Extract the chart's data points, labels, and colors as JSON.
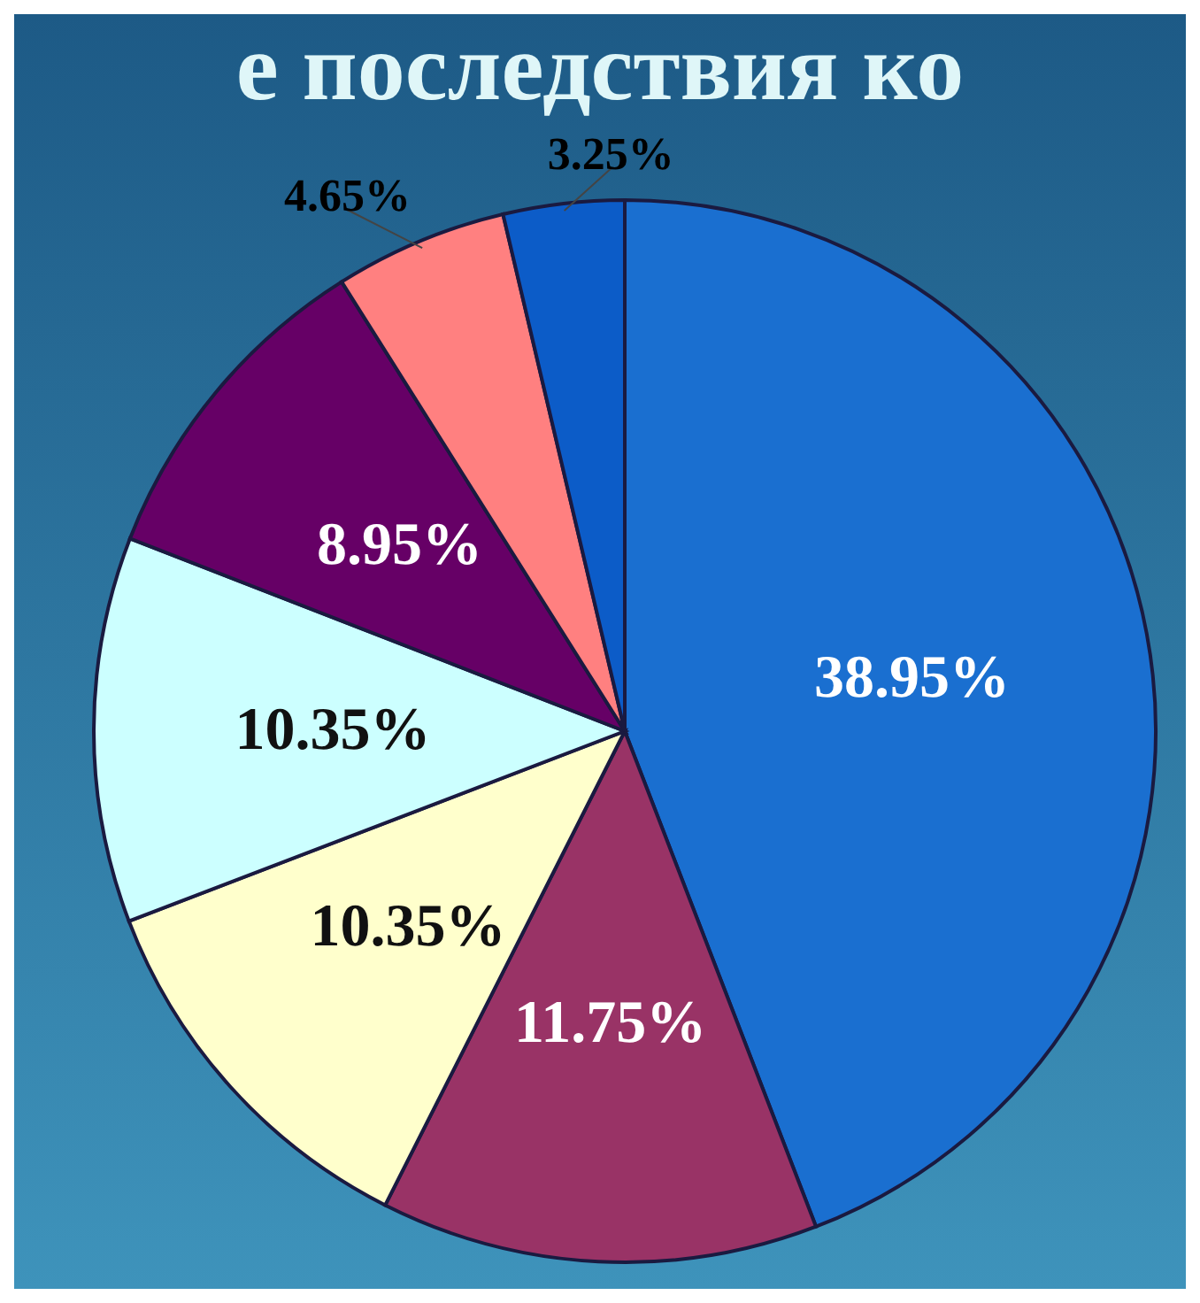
{
  "chart_data": {
    "type": "pie",
    "title": "е последствия ко",
    "categories": [
      null,
      null,
      null,
      null,
      null,
      null,
      null
    ],
    "values": [
      38.95,
      11.75,
      10.35,
      10.35,
      8.95,
      4.65,
      3.25
    ],
    "value_labels": [
      "38.95%",
      "11.75%",
      "10.35%",
      "10.35%",
      "8.95%",
      "4.65%",
      "3.25%"
    ],
    "colors": [
      "#1a6fd0",
      "#993366",
      "#ffffcc",
      "#ccffff",
      "#660066",
      "#ff8080",
      "#0c5cc8"
    ]
  }
}
